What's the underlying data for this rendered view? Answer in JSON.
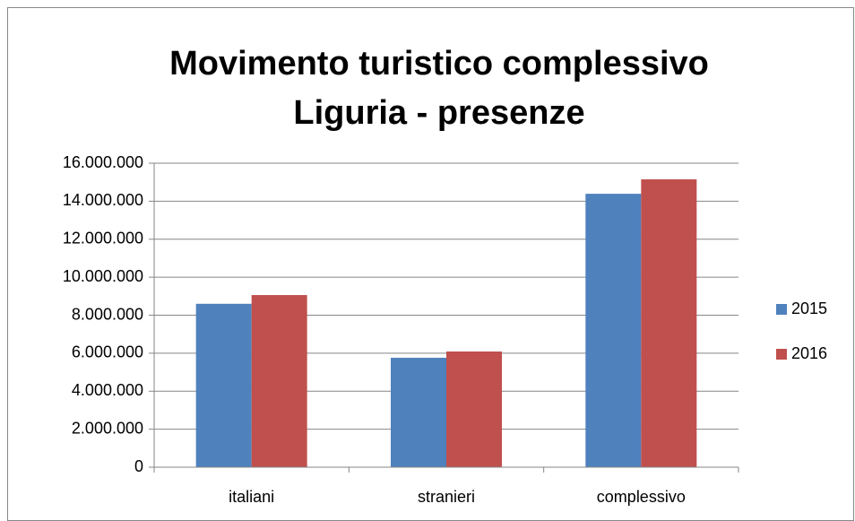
{
  "chart_data": {
    "type": "bar",
    "title": [
      "Movimento turistico complessivo",
      "Liguria - presenze"
    ],
    "categories": [
      "italiani",
      "stranieri",
      "complessivo"
    ],
    "series": [
      {
        "name": "2015",
        "color": "#4f81bd",
        "values": [
          8600000,
          5760000,
          14390000
        ]
      },
      {
        "name": "2016",
        "color": "#c0504d",
        "values": [
          9060000,
          6090000,
          15150000
        ]
      }
    ],
    "ylim": [
      0,
      16000000
    ],
    "yticks": [
      0,
      {
        "value": 2000000,
        "label": "2.000.000"
      },
      {
        "value": 4000000,
        "label": "4.000.000"
      },
      {
        "value": 6000000,
        "label": "6.000.000"
      },
      {
        "value": 8000000,
        "label": "8.000.000"
      },
      {
        "value": 10000000,
        "label": "10.000.000"
      },
      {
        "value": 12000000,
        "label": "12.000.000"
      },
      {
        "value": 14000000,
        "label": "14.000.000"
      },
      {
        "value": 16000000,
        "label": "16.000.000"
      }
    ],
    "grid": true,
    "legend": "right"
  }
}
